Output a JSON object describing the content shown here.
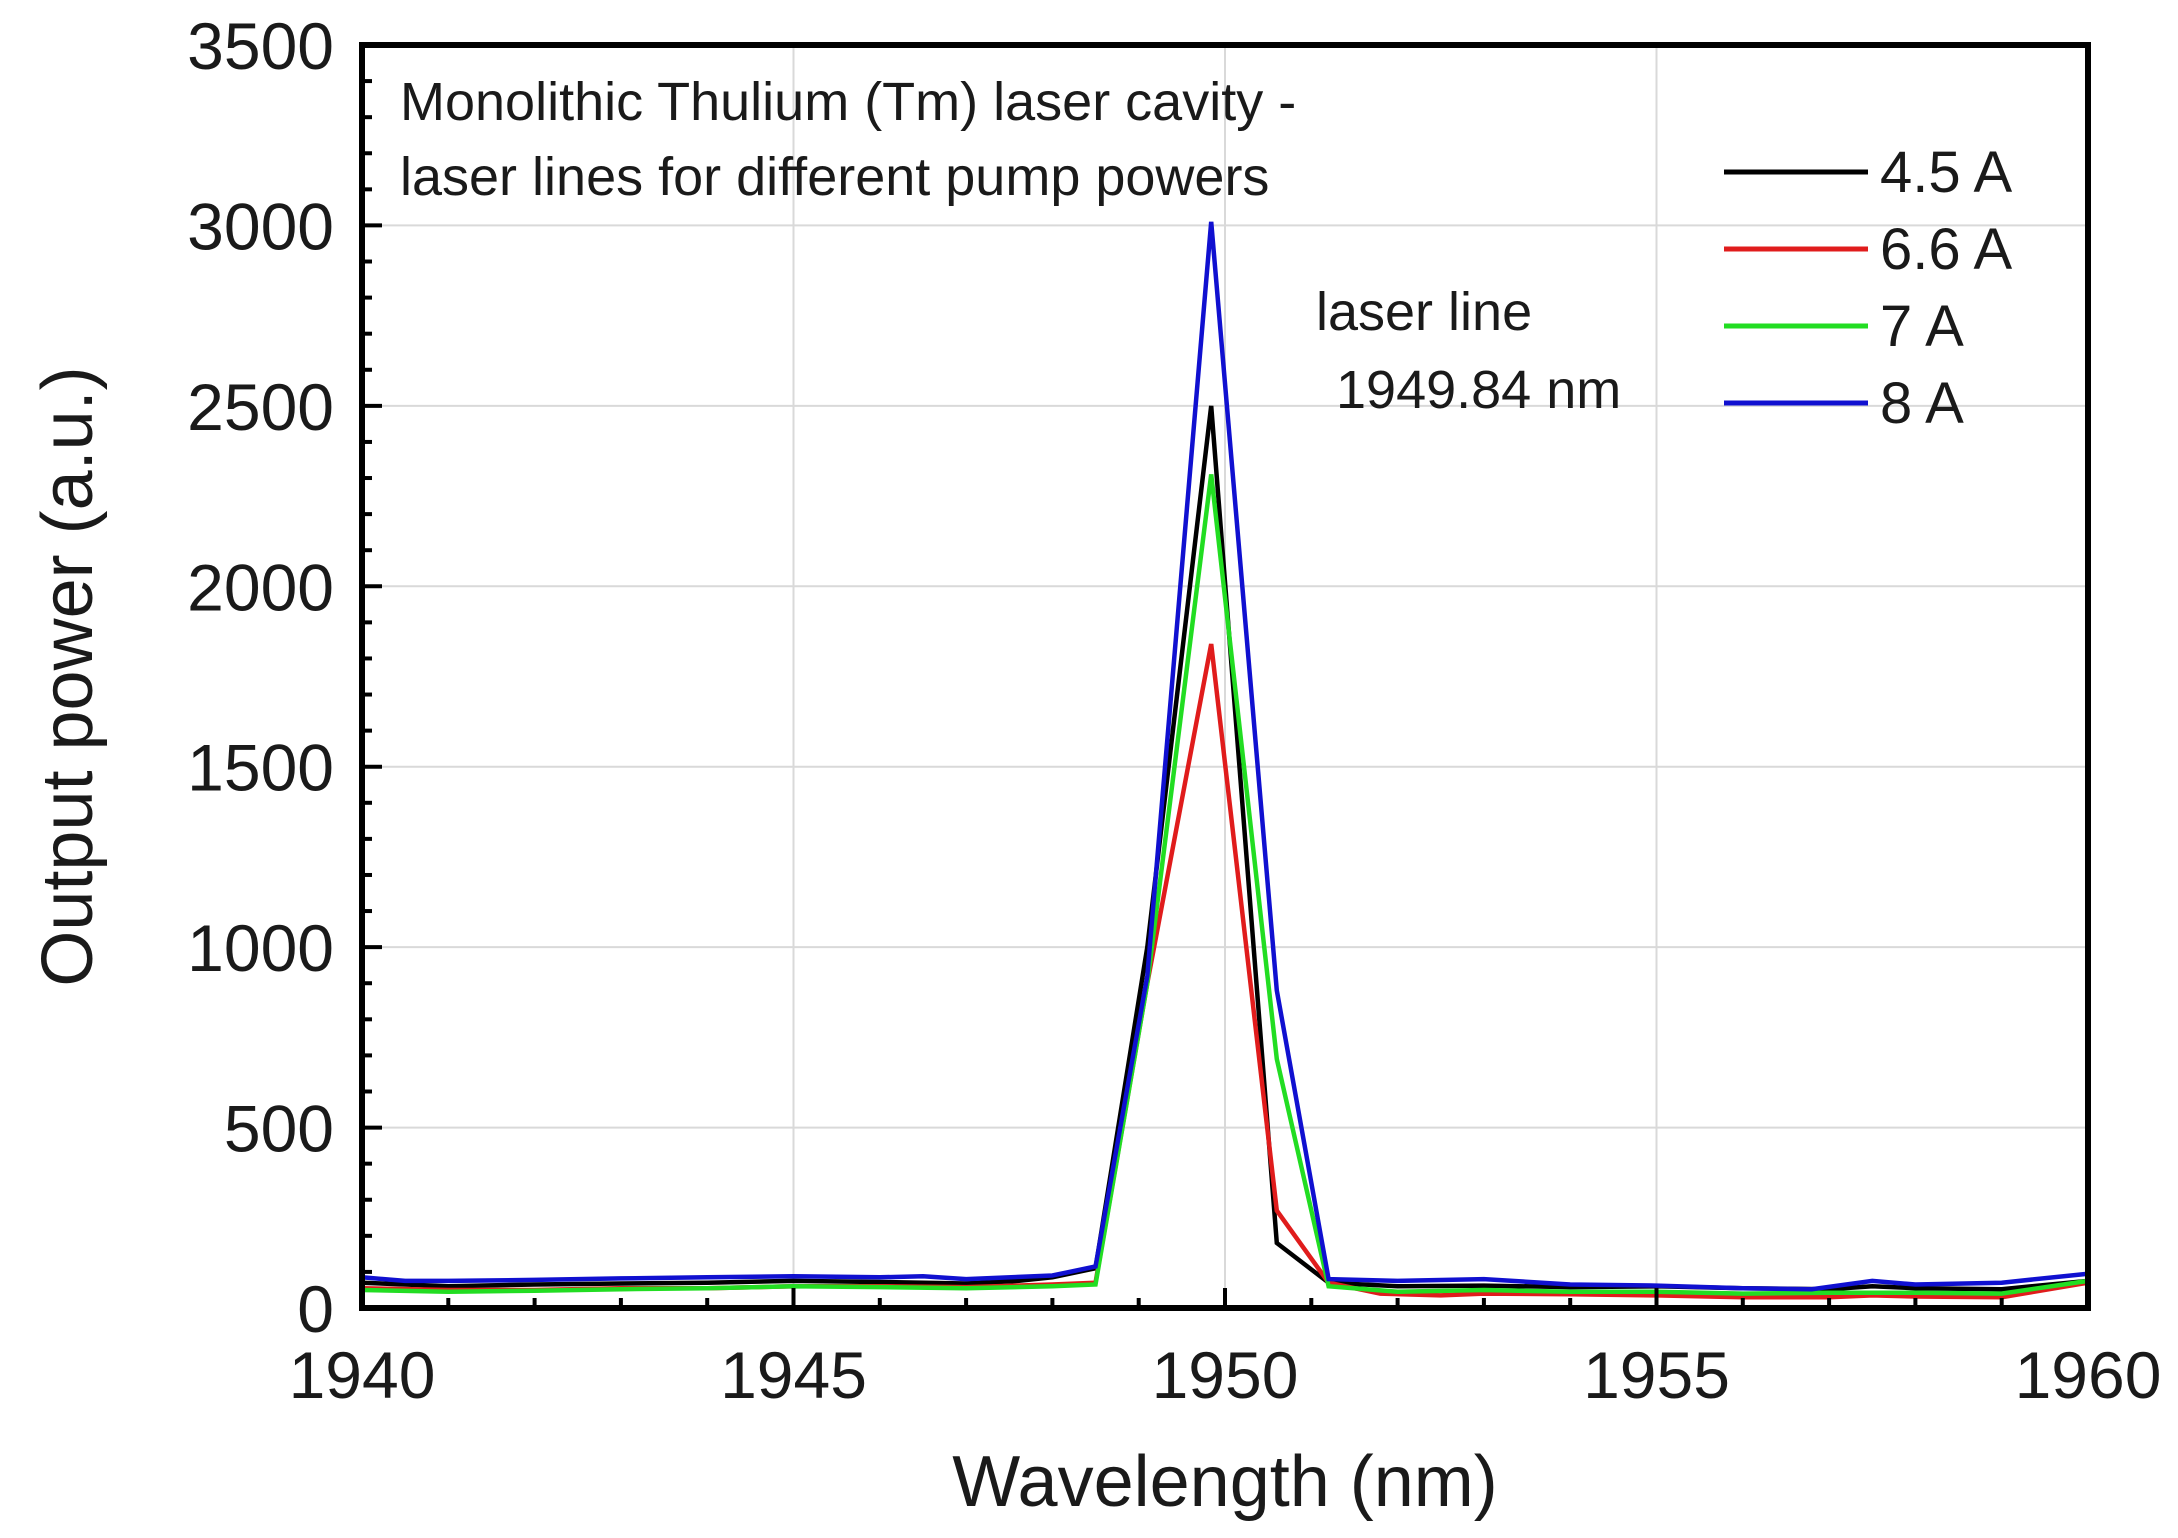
{
  "chart_data": {
    "type": "line",
    "title": "",
    "xlabel": "Wavelength (nm)",
    "ylabel": "Output power (a.u.)",
    "xlim": [
      1940,
      1960
    ],
    "ylim": [
      0,
      3500
    ],
    "xticks": [
      1940,
      1945,
      1950,
      1955,
      1960
    ],
    "yticks": [
      0,
      500,
      1000,
      1500,
      2000,
      2500,
      3000,
      3500
    ],
    "grid": true,
    "legend_position": "top-right",
    "annotations": {
      "title_line1": "Monolithic Thulium (Tm) laser cavity -",
      "title_line2": "laser lines for different pump powers",
      "peak_line1": "laser line",
      "peak_line2": "1949.84 nm"
    },
    "series": [
      {
        "name": "4.5 A",
        "color": "#000000",
        "x": [
          1940,
          1941,
          1942,
          1943,
          1944,
          1945,
          1946,
          1947,
          1947.6,
          1948,
          1948.5,
          1949.1,
          1949.84,
          1950.6,
          1951.2,
          1952,
          1953,
          1954,
          1955,
          1956,
          1957,
          1957.5,
          1958,
          1959,
          1960
        ],
        "values": [
          70,
          60,
          65,
          68,
          70,
          75,
          72,
          68,
          75,
          85,
          110,
          1000,
          2500,
          180,
          70,
          60,
          62,
          58,
          60,
          55,
          52,
          60,
          55,
          52,
          75
        ]
      },
      {
        "name": "6.6 A",
        "color": "#e01c1c",
        "x": [
          1940,
          1941,
          1942,
          1943,
          1944,
          1945,
          1946,
          1947,
          1948,
          1948.5,
          1949.1,
          1949.84,
          1950.6,
          1951.2,
          1951.8,
          1952.5,
          1953,
          1954,
          1955,
          1956,
          1957,
          1957.5,
          1958,
          1959,
          1960
        ],
        "values": [
          55,
          50,
          50,
          55,
          55,
          60,
          60,
          58,
          65,
          70,
          900,
          1840,
          270,
          70,
          40,
          35,
          40,
          38,
          35,
          30,
          30,
          35,
          32,
          30,
          70
        ]
      },
      {
        "name": "7 A",
        "color": "#22dd22",
        "x": [
          1940,
          1941,
          1942,
          1943,
          1944,
          1945,
          1946,
          1947,
          1948,
          1948.5,
          1949.1,
          1949.84,
          1950.6,
          1951.2,
          1952,
          1953,
          1954,
          1955,
          1956,
          1957,
          1958,
          1959,
          1960
        ],
        "values": [
          50,
          45,
          48,
          52,
          55,
          60,
          58,
          55,
          60,
          65,
          900,
          2310,
          690,
          60,
          45,
          50,
          45,
          45,
          40,
          42,
          42,
          40,
          75
        ]
      },
      {
        "name": "8 A",
        "color": "#1010d0",
        "x": [
          1940,
          1940.5,
          1941,
          1942,
          1943,
          1944,
          1945,
          1946,
          1946.5,
          1947,
          1948,
          1948.5,
          1949.1,
          1949.84,
          1950.6,
          1951.2,
          1952,
          1953,
          1954,
          1955,
          1956,
          1956.8,
          1957.5,
          1958,
          1959,
          1960
        ],
        "values": [
          85,
          75,
          75,
          78,
          82,
          85,
          88,
          85,
          88,
          80,
          90,
          115,
          920,
          3010,
          880,
          80,
          75,
          80,
          65,
          62,
          55,
          52,
          75,
          65,
          70,
          95
        ]
      }
    ]
  }
}
